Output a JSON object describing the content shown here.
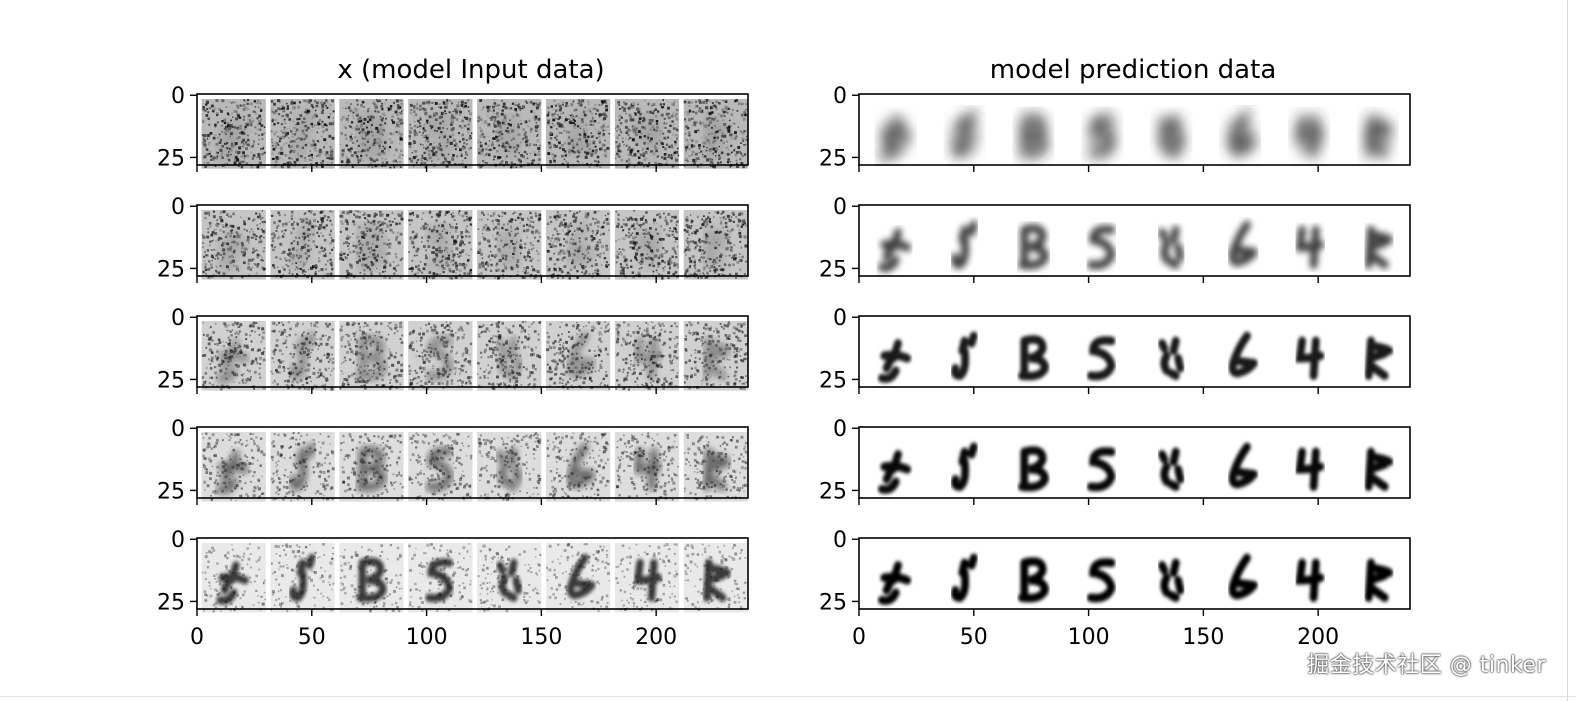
{
  "chart_data": [
    {
      "type": "heatmap",
      "title": "x (model Input data)",
      "rows": 5,
      "digits_per_row": 8,
      "image_x_range": [
        0,
        240
      ],
      "image_y_range": [
        0,
        28
      ],
      "xticks": [
        "0",
        "50",
        "100",
        "150",
        "200"
      ],
      "yticks": [
        "0",
        "25"
      ],
      "colormap": "Greys",
      "noise_levels": [
        1.0,
        0.8,
        0.6,
        0.4,
        0.2
      ],
      "grid": false
    },
    {
      "type": "heatmap",
      "title": "model prediction data",
      "rows": 5,
      "digits_per_row": 8,
      "image_x_range": [
        0,
        240
      ],
      "image_y_range": [
        0,
        28
      ],
      "xticks": [
        "0",
        "50",
        "100",
        "150",
        "200"
      ],
      "yticks": [
        "0",
        "25"
      ],
      "colormap": "Greys",
      "noise_levels": [
        0,
        0,
        0,
        0,
        0
      ],
      "grid": false
    }
  ],
  "watermark": "掘金技术社区 @ tinker"
}
